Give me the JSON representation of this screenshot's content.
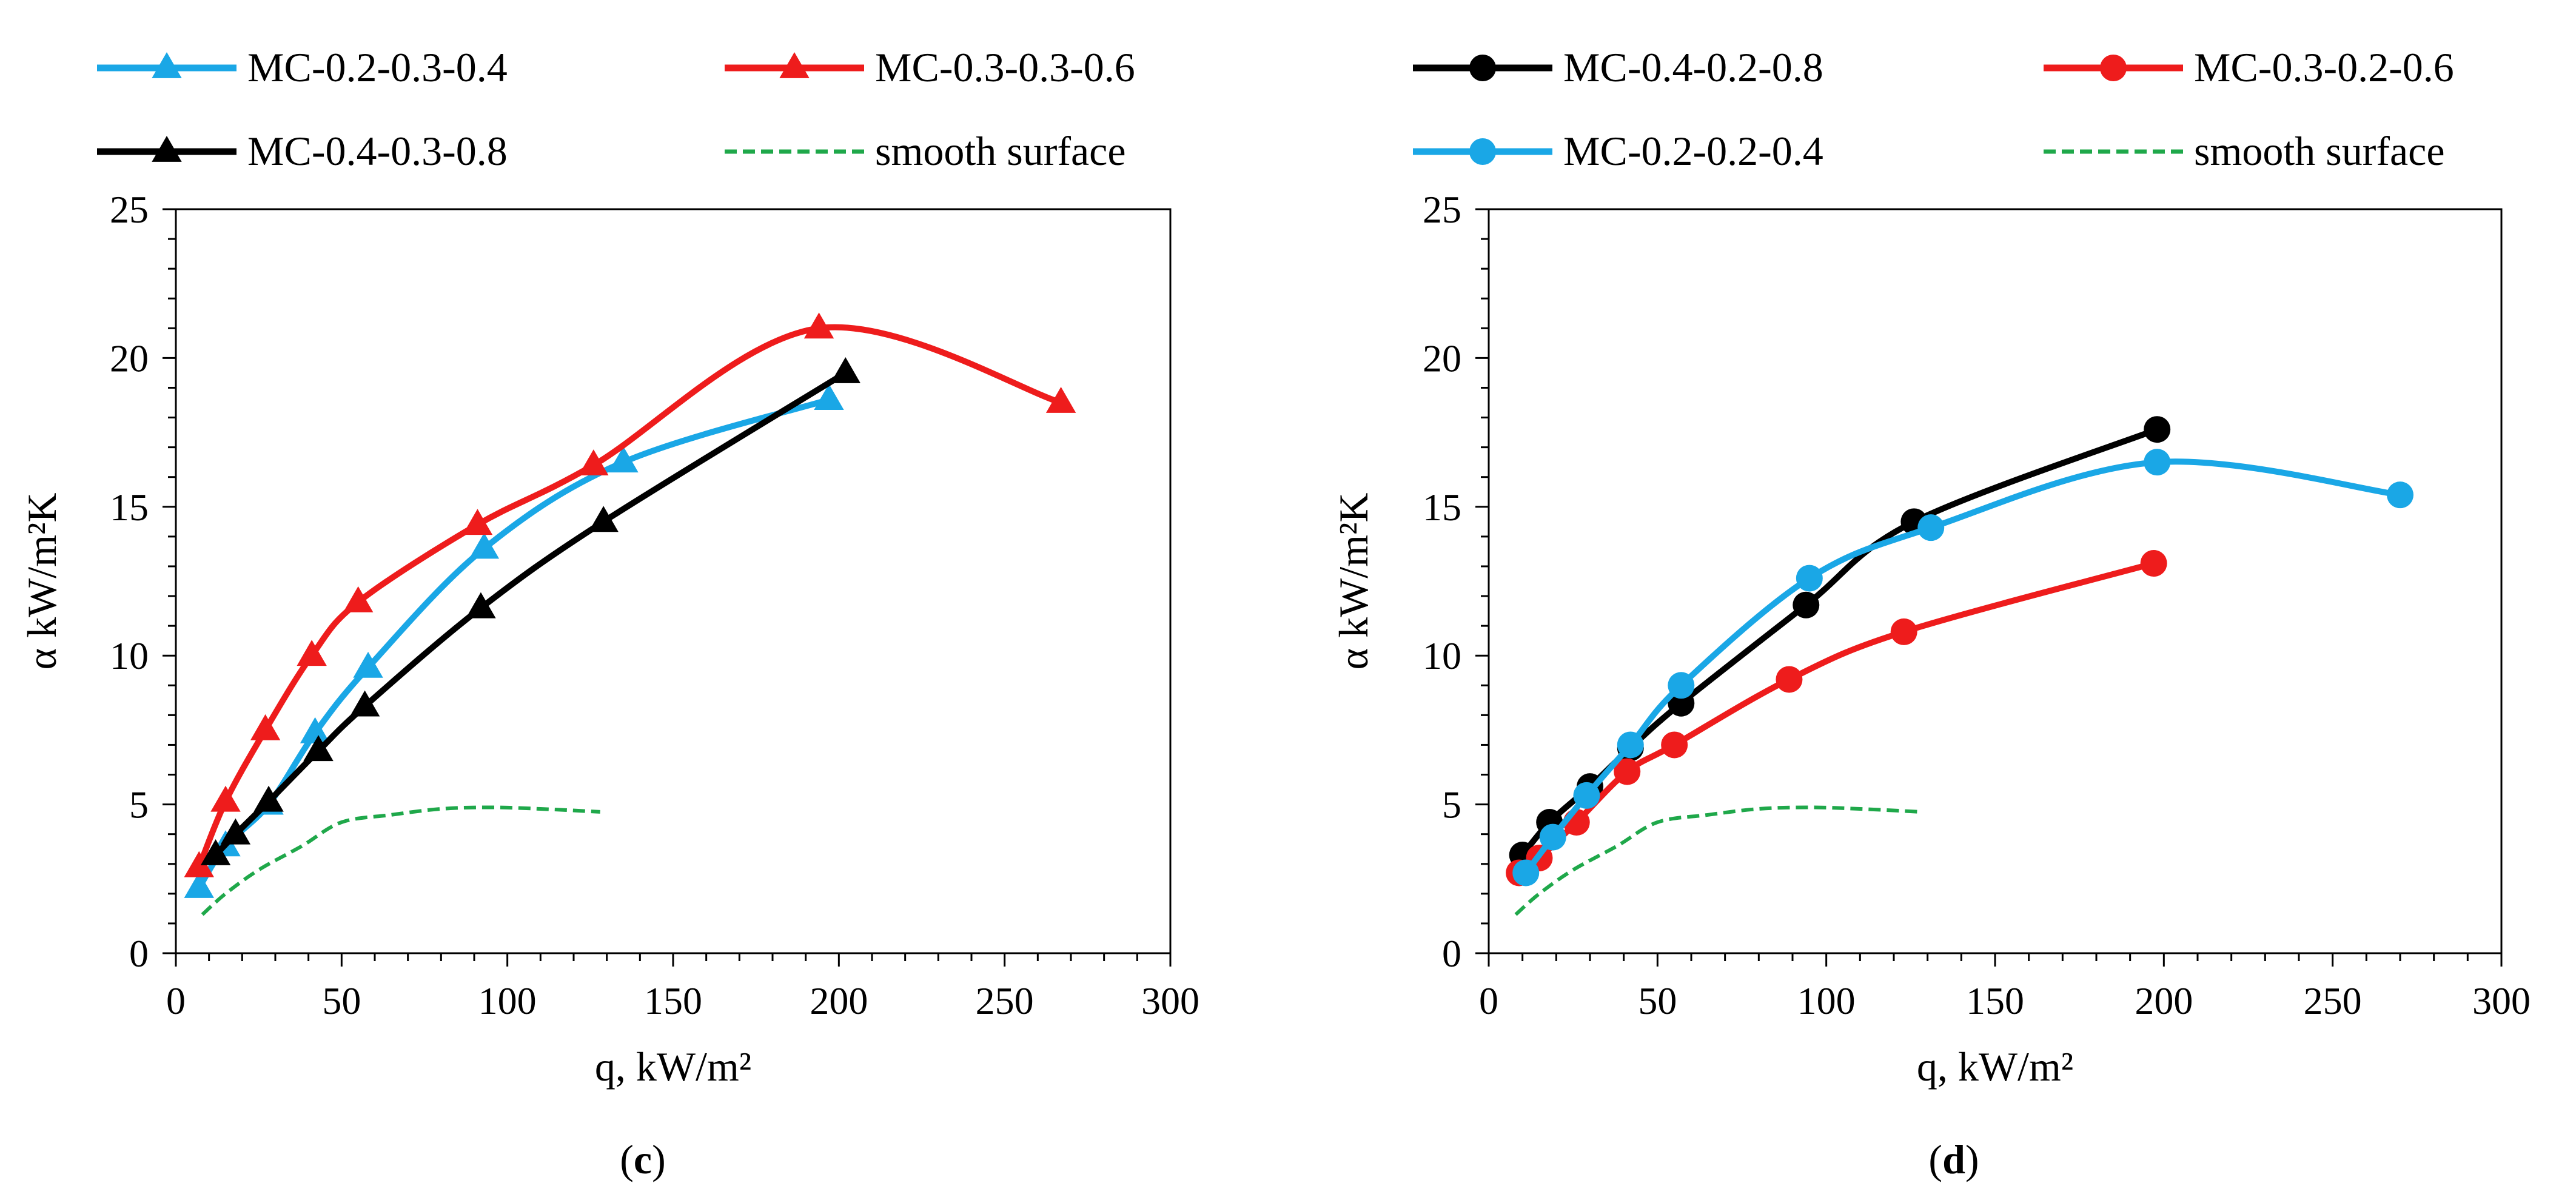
{
  "chart_data": [
    {
      "type": "line",
      "panel_label": "c",
      "title": "",
      "xlabel": "q, kW/m²",
      "ylabel": "α kW/m²K",
      "xlim": [
        0,
        300
      ],
      "ylim": [
        0,
        25
      ],
      "xticks": [
        0,
        50,
        100,
        150,
        200,
        250,
        300
      ],
      "yticks": [
        0,
        5,
        10,
        15,
        20,
        25
      ],
      "legend_placement": "top",
      "series": [
        {
          "name": "MC-0.2-0.3-0.4",
          "color": "#1aa7e6",
          "marker": "triangle",
          "dashed": false,
          "x": [
            7,
            15,
            28,
            42,
            58,
            93,
            135,
            197
          ],
          "y": [
            2.2,
            3.6,
            5.0,
            7.4,
            9.6,
            13.6,
            16.5,
            18.6
          ]
        },
        {
          "name": "MC-0.3-0.3-0.6",
          "color": "#ee1c1c",
          "marker": "triangle",
          "dashed": false,
          "x": [
            7,
            15,
            27,
            41,
            55,
            91,
            126,
            194,
            267
          ],
          "y": [
            2.9,
            5.1,
            7.5,
            10.0,
            11.8,
            14.4,
            16.4,
            21.0,
            18.5
          ]
        },
        {
          "name": "MC-0.4-0.3-0.8",
          "color": "#000000",
          "marker": "triangle",
          "dashed": false,
          "x": [
            12,
            18,
            28,
            43,
            57,
            92,
            129,
            202
          ],
          "y": [
            3.3,
            4.0,
            5.1,
            6.8,
            8.3,
            11.6,
            14.5,
            19.5
          ]
        },
        {
          "name": "smooth surface",
          "color": "#1fa84a",
          "marker": "none",
          "dashed": true,
          "x": [
            8,
            15,
            25,
            38,
            50,
            65,
            80,
            95,
            110,
            128
          ],
          "y": [
            1.3,
            2.0,
            2.8,
            3.6,
            4.4,
            4.65,
            4.85,
            4.9,
            4.85,
            4.75
          ]
        }
      ]
    },
    {
      "type": "line",
      "panel_label": "d",
      "title": "",
      "xlabel": "q, kW/m²",
      "ylabel": "α kW/m²K",
      "xlim": [
        0,
        300
      ],
      "ylim": [
        0,
        25
      ],
      "xticks": [
        0,
        50,
        100,
        150,
        200,
        250,
        300
      ],
      "yticks": [
        0,
        5,
        10,
        15,
        20,
        25
      ],
      "legend_placement": "top",
      "series": [
        {
          "name": "MC-0.4-0.2-0.8",
          "color": "#000000",
          "marker": "circle",
          "dashed": false,
          "x": [
            10,
            18,
            30,
            42,
            57,
            94,
            126,
            198
          ],
          "y": [
            3.3,
            4.4,
            5.6,
            6.9,
            8.4,
            11.7,
            14.5,
            17.6
          ]
        },
        {
          "name": "MC-0.3-0.2-0.6",
          "color": "#ee1c1c",
          "marker": "circle",
          "dashed": false,
          "x": [
            9,
            15,
            26,
            41,
            55,
            89,
            123,
            197
          ],
          "y": [
            2.7,
            3.2,
            4.4,
            6.1,
            7.0,
            9.2,
            10.8,
            13.1
          ]
        },
        {
          "name": "MC-0.2-0.2-0.4",
          "color": "#1aa7e6",
          "marker": "circle",
          "dashed": false,
          "x": [
            11,
            19,
            29,
            42,
            57,
            95,
            131,
            198,
            270
          ],
          "y": [
            2.7,
            3.9,
            5.3,
            7.0,
            9.0,
            12.6,
            14.3,
            16.5,
            15.4
          ]
        },
        {
          "name": "smooth surface",
          "color": "#1fa84a",
          "marker": "none",
          "dashed": true,
          "x": [
            8,
            15,
            25,
            38,
            50,
            65,
            80,
            95,
            110,
            128
          ],
          "y": [
            1.3,
            2.0,
            2.8,
            3.6,
            4.4,
            4.65,
            4.85,
            4.9,
            4.85,
            4.75
          ]
        }
      ]
    }
  ]
}
